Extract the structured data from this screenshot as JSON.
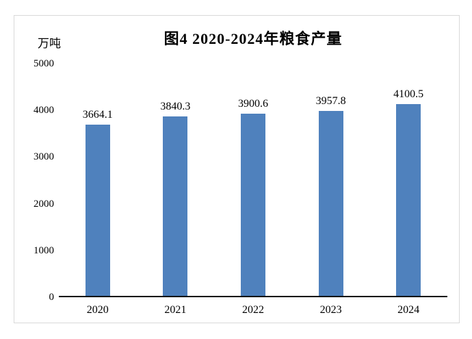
{
  "chart_data": {
    "type": "bar",
    "title": "图4 2020-2024年粮食产量",
    "unit_label": "万吨",
    "categories": [
      "2020",
      "2021",
      "2022",
      "2023",
      "2024"
    ],
    "values": [
      3664.1,
      3840.3,
      3900.6,
      3957.8,
      4100.5
    ],
    "data_labels": [
      "3664.1",
      "3840.3",
      "3900.6",
      "3957.8",
      "4100.5"
    ],
    "xlabel": "",
    "ylabel": "万吨",
    "ylim": [
      0,
      5000
    ],
    "ytick_step": 1000,
    "ytick_labels": [
      "0",
      "1000",
      "2000",
      "3000",
      "4000",
      "5000"
    ],
    "bar_color": "#4F81BD",
    "axis_line_color": "#000000",
    "frame_border_color": "#d9d9d9",
    "grid": "off",
    "legend": "none"
  }
}
